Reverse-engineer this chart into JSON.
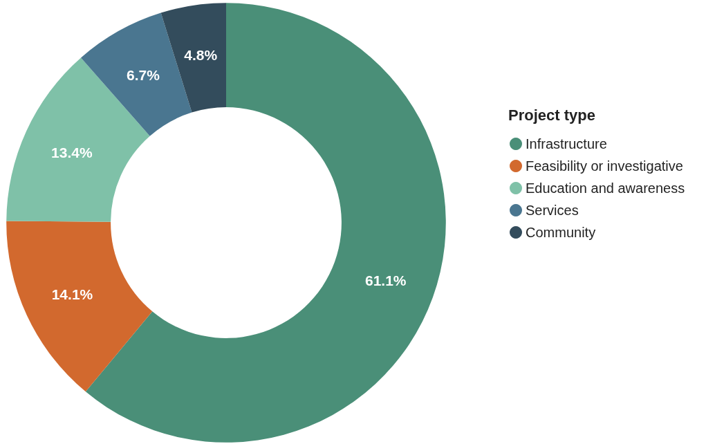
{
  "chart_data": {
    "type": "donut",
    "legend_title": "Project type",
    "categories": [
      "Infrastructure",
      "Feasibility or investigative",
      "Education and awareness",
      "Services",
      "Community"
    ],
    "values": [
      61.1,
      14.1,
      13.4,
      6.7,
      4.8
    ],
    "colors": [
      "#4a8f78",
      "#d2692e",
      "#7fc1a8",
      "#4a7690",
      "#334c5c"
    ],
    "value_labels": [
      "61.1%",
      "14.1%",
      "13.4%",
      "6.7%",
      "4.8%"
    ],
    "legend": "right"
  }
}
